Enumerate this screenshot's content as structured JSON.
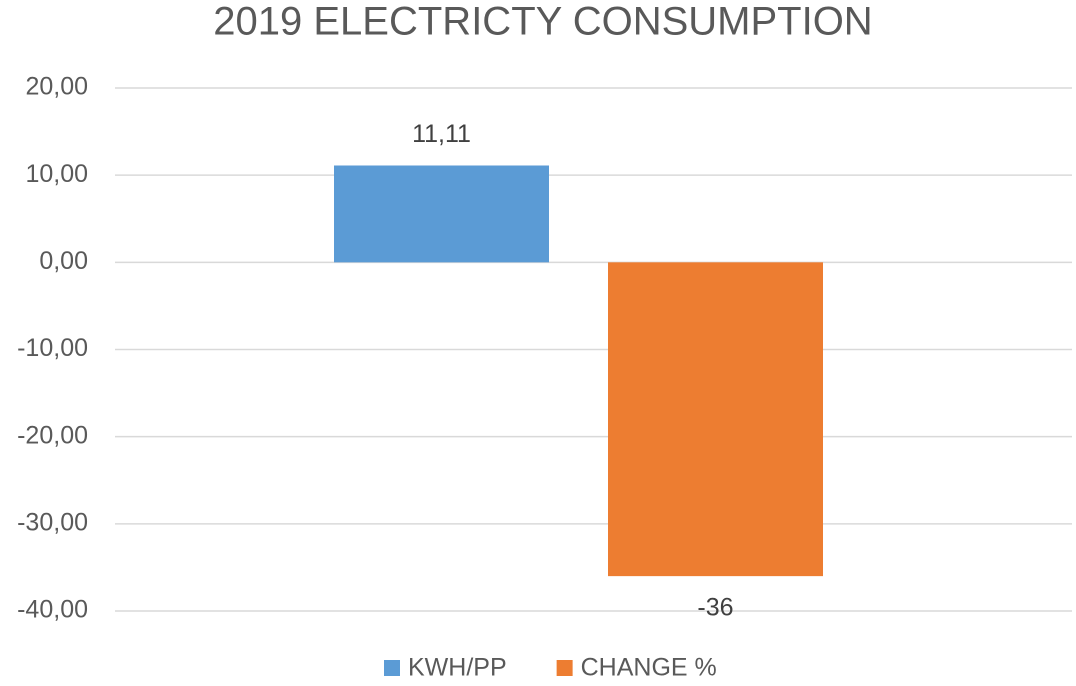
{
  "chart_data": {
    "type": "bar",
    "title": "2019 ELECTRICTY CONSUMPTION",
    "categories": [
      null
    ],
    "series": [
      {
        "name": "KWH/PP",
        "color": "#5b9bd5",
        "values": [
          11.11
        ],
        "value_labels": [
          "11,11"
        ]
      },
      {
        "name": "CHANGE %",
        "color": "#ed7d31",
        "values": [
          -36
        ]
      }
    ],
    "ylim": [
      -40,
      20
    ],
    "yticks": [
      {
        "value": -40,
        "label": "-40,00"
      },
      {
        "value": -30,
        "label": "-30,00"
      },
      {
        "value": -20,
        "label": "-20,00"
      },
      {
        "value": -10,
        "label": "-10,00"
      },
      {
        "value": 0,
        "label": "0,00"
      },
      {
        "value": 10,
        "label": "10,00"
      },
      {
        "value": 20,
        "label": "20,00"
      }
    ],
    "grid": true,
    "legend": "bottom"
  }
}
